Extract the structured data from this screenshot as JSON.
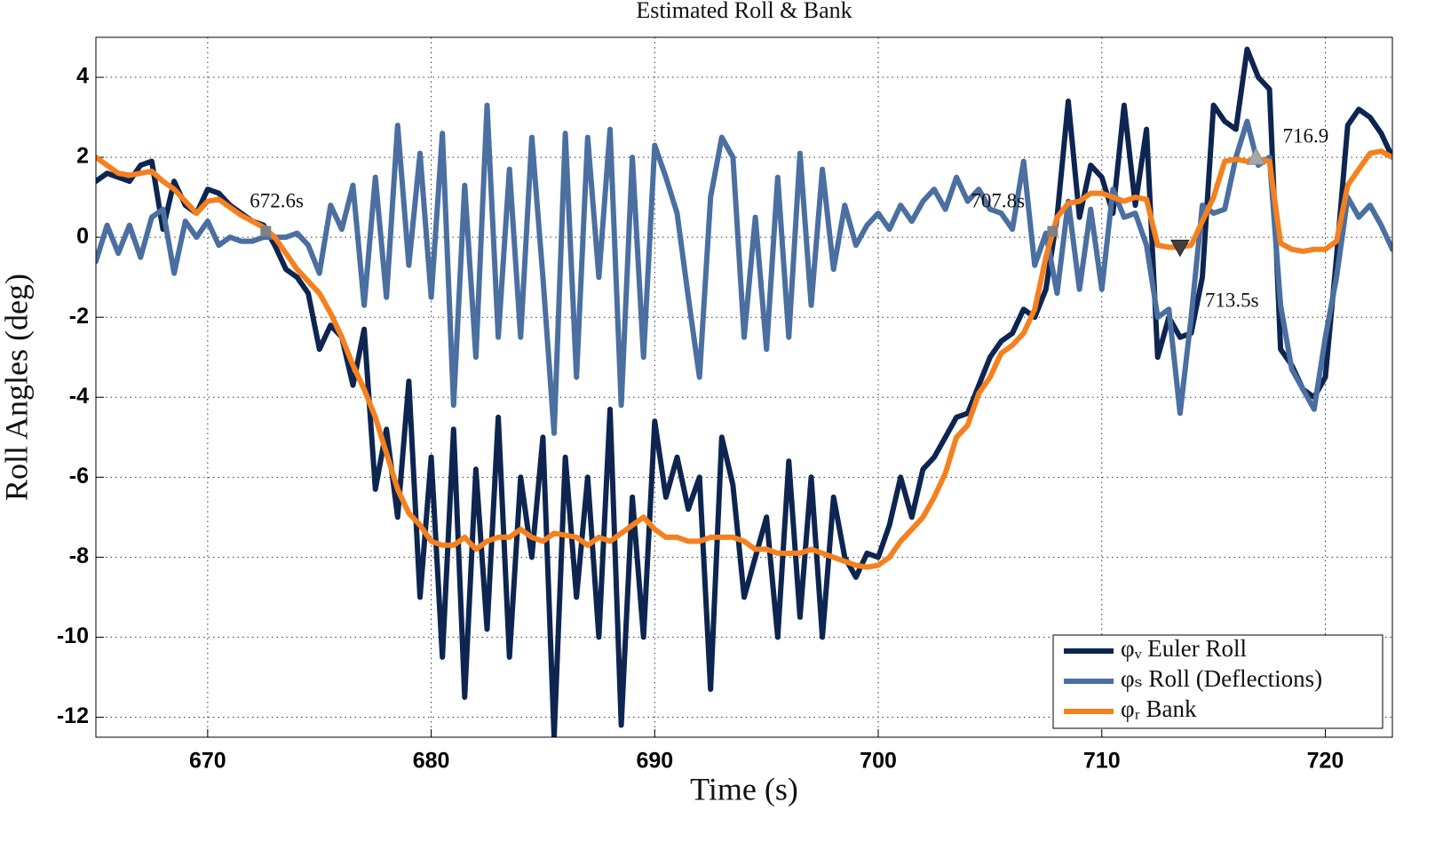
{
  "chart_data": {
    "type": "line",
    "title": "Estimated Roll & Bank",
    "x_label": "Time (s)",
    "y_label": "Roll Angles (deg)",
    "xlim": [
      665,
      723
    ],
    "ylim": [
      -12.5,
      5
    ],
    "xticks": [
      670,
      680,
      690,
      700,
      710,
      720
    ],
    "yticks": [
      -12,
      -10,
      -8,
      -6,
      -4,
      -2,
      0,
      2,
      4
    ],
    "grid": true,
    "legend_position": "lower right",
    "x": [
      665,
      665.5,
      666,
      666.5,
      667,
      667.5,
      668,
      668.5,
      669,
      669.5,
      670,
      670.5,
      671,
      671.5,
      672,
      672.5,
      673,
      673.5,
      674,
      674.5,
      675,
      675.5,
      676,
      676.5,
      677,
      677.5,
      678,
      678.5,
      679,
      679.5,
      680,
      680.5,
      681,
      681.5,
      682,
      682.5,
      683,
      683.5,
      684,
      684.5,
      685,
      685.5,
      686,
      686.5,
      687,
      687.5,
      688,
      688.5,
      689,
      689.5,
      690,
      690.5,
      691,
      691.5,
      692,
      692.5,
      693,
      693.5,
      694,
      694.5,
      695,
      695.5,
      696,
      696.5,
      697,
      697.5,
      698,
      698.5,
      699,
      699.5,
      700,
      700.5,
      701,
      701.5,
      702,
      702.5,
      703,
      703.5,
      704,
      704.5,
      705,
      705.5,
      706,
      706.5,
      707,
      707.5,
      708,
      708.5,
      709,
      709.5,
      710,
      710.5,
      711,
      711.5,
      712,
      712.5,
      713,
      713.5,
      714,
      714.5,
      715,
      715.5,
      716,
      716.5,
      717,
      717.5,
      718,
      718.5,
      719,
      719.5,
      720,
      720.5,
      721,
      721.5,
      722,
      722.5,
      723
    ],
    "series": [
      {
        "name": "φᵥ Euler Roll",
        "color": "#0d2550",
        "values": [
          1.4,
          1.6,
          1.5,
          1.4,
          1.8,
          1.9,
          0.2,
          1.4,
          0.8,
          0.6,
          1.2,
          1.1,
          0.8,
          0.6,
          0.4,
          0.3,
          -0.2,
          -0.8,
          -1.0,
          -1.4,
          -2.8,
          -2.2,
          -2.5,
          -3.7,
          -2.3,
          -6.3,
          -4.8,
          -7.0,
          -3.6,
          -9.0,
          -5.5,
          -10.5,
          -4.8,
          -11.5,
          -5.8,
          -9.8,
          -4.5,
          -10.5,
          -6.0,
          -8.0,
          -5.0,
          -12.5,
          -5.5,
          -9.0,
          -6.0,
          -10.0,
          -4.3,
          -12.2,
          -6.5,
          -10.0,
          -4.6,
          -6.5,
          -5.5,
          -6.8,
          -6.0,
          -11.3,
          -5.0,
          -6.2,
          -9.0,
          -8.0,
          -7.0,
          -10.0,
          -5.6,
          -9.5,
          -6.0,
          -10.0,
          -6.5,
          -8.0,
          -8.5,
          -7.9,
          -8.0,
          -7.2,
          -6.0,
          -7.0,
          -5.8,
          -5.5,
          -5.0,
          -4.5,
          -4.4,
          -3.7,
          -3.0,
          -2.6,
          -2.4,
          -1.8,
          -2.0,
          -1.3,
          0.5,
          3.4,
          0.5,
          1.8,
          1.5,
          0.6,
          3.3,
          0.8,
          2.7,
          -3.0,
          -2.0,
          -2.5,
          -2.4,
          -1.0,
          3.3,
          2.9,
          2.7,
          4.7,
          4.0,
          3.7,
          -2.8,
          -3.2,
          -3.8,
          -4.0,
          -3.5,
          -0.5,
          2.8,
          3.2,
          3.0,
          2.6,
          2.0
        ]
      },
      {
        "name": "φₛ Roll (Deflections)",
        "color": "#4a6fa0",
        "values": [
          -0.6,
          0.3,
          -0.4,
          0.3,
          -0.5,
          0.5,
          0.7,
          -0.9,
          0.4,
          0.0,
          0.4,
          -0.2,
          0.0,
          -0.1,
          -0.1,
          0.0,
          0.0,
          0.0,
          0.1,
          -0.2,
          -0.9,
          0.8,
          0.2,
          1.3,
          -1.7,
          1.5,
          -1.5,
          2.8,
          -0.7,
          2.1,
          -1.5,
          2.6,
          -4.2,
          1.3,
          -3.0,
          3.3,
          -2.5,
          1.7,
          -2.5,
          2.5,
          -1.0,
          -4.9,
          2.6,
          -3.5,
          2.5,
          -1.0,
          2.7,
          -4.2,
          2.0,
          -3.0,
          2.3,
          1.5,
          0.6,
          -1.5,
          -3.5,
          1.0,
          2.5,
          2.0,
          -2.5,
          0.5,
          -2.8,
          1.5,
          -2.5,
          2.1,
          -1.7,
          1.7,
          -0.8,
          0.8,
          -0.2,
          0.3,
          0.6,
          0.2,
          0.8,
          0.4,
          0.9,
          1.2,
          0.7,
          1.5,
          0.9,
          1.2,
          0.7,
          0.6,
          0.2,
          1.9,
          -0.7,
          0.1,
          -1.4,
          0.9,
          -1.3,
          0.7,
          -1.3,
          1.2,
          0.5,
          0.6,
          -0.2,
          -2.0,
          -1.8,
          -4.4,
          -2.0,
          0.8,
          0.6,
          0.7,
          2.0,
          2.9,
          1.8,
          2.0,
          -1.7,
          -3.3,
          -3.8,
          -4.3,
          -2.5,
          -1.0,
          1.0,
          0.5,
          0.8,
          0.3,
          -0.3
        ]
      },
      {
        "name": "φᵣ Bank",
        "color": "#f5801e",
        "values": [
          2.0,
          1.8,
          1.6,
          1.55,
          1.6,
          1.65,
          1.4,
          1.2,
          0.9,
          0.6,
          0.9,
          0.95,
          0.75,
          0.55,
          0.4,
          0.25,
          0.0,
          -0.4,
          -0.8,
          -1.1,
          -1.4,
          -1.9,
          -2.5,
          -3.2,
          -3.8,
          -4.5,
          -5.4,
          -6.3,
          -6.9,
          -7.2,
          -7.6,
          -7.7,
          -7.7,
          -7.5,
          -7.8,
          -7.6,
          -7.5,
          -7.5,
          -7.3,
          -7.5,
          -7.6,
          -7.4,
          -7.45,
          -7.5,
          -7.7,
          -7.5,
          -7.6,
          -7.4,
          -7.2,
          -7.0,
          -7.3,
          -7.5,
          -7.5,
          -7.6,
          -7.6,
          -7.5,
          -7.5,
          -7.5,
          -7.6,
          -7.8,
          -7.8,
          -7.9,
          -7.9,
          -7.9,
          -7.8,
          -7.9,
          -8.0,
          -8.1,
          -8.2,
          -8.25,
          -8.2,
          -8.0,
          -7.6,
          -7.3,
          -7.0,
          -6.5,
          -5.9,
          -5.0,
          -4.7,
          -3.9,
          -3.5,
          -2.9,
          -2.7,
          -2.4,
          -1.8,
          -0.5,
          0.5,
          0.85,
          0.9,
          1.1,
          1.1,
          1.0,
          0.9,
          1.0,
          0.95,
          -0.2,
          -0.25,
          -0.25,
          -0.2,
          0.4,
          1.0,
          1.9,
          1.95,
          1.9,
          1.95,
          1.9,
          -0.15,
          -0.3,
          -0.35,
          -0.3,
          -0.3,
          -0.1,
          1.3,
          1.7,
          2.1,
          2.15,
          2.0
        ]
      }
    ],
    "annotations": [
      {
        "x": 672.6,
        "y": 0.15,
        "label": "672.6s",
        "marker": "square",
        "color": "#808080"
      },
      {
        "x": 707.8,
        "y": 0.15,
        "label": "707.8s",
        "marker": "square",
        "color": "#808080"
      },
      {
        "x": 713.5,
        "y": -0.25,
        "label": "713.5s",
        "marker": "triangle-down",
        "color": "#404040"
      },
      {
        "x": 716.9,
        "y": 2.0,
        "label": "716.9",
        "marker": "triangle-up",
        "color": "#a8a8a8"
      }
    ]
  }
}
